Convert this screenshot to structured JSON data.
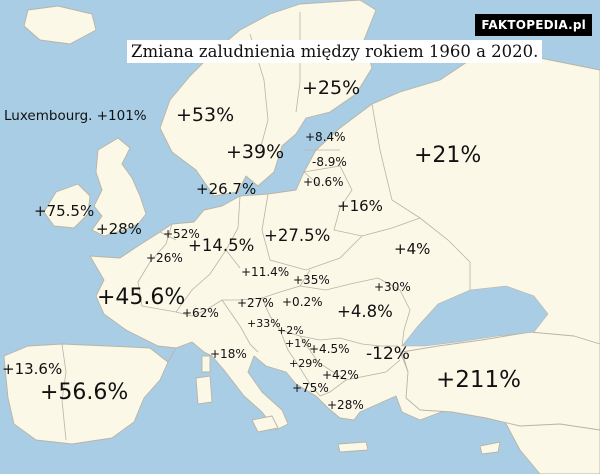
{
  "brand": "FAKTOPEDIA.pl",
  "title": "Zmiana zaludnienia między rokiem 1960 a 2020.",
  "note": "Luxembourg. +101%",
  "labels": {
    "finland": "+25%",
    "sweden": "+53%",
    "norway": "+39%",
    "estonia": "+8.4%",
    "latvia": "-8.9%",
    "lithuania": "+0.6%",
    "russia": "+21%",
    "denmark": "+26.7%",
    "belarus": "+16%",
    "ireland": "+75.5%",
    "uk": "+28%",
    "netherlands": "+52%",
    "belgium": "+26%",
    "germany": "+14.5%",
    "poland": "+27.5%",
    "ukraine": "+4%",
    "czechia": "+11.4%",
    "slovakia": "+35%",
    "moldova": "+30%",
    "france": "+45.6%",
    "switzerland": "+62%",
    "austria": "+27%",
    "hungary": "+0.2%",
    "romania": "+4.8%",
    "slovenia": "+33%",
    "croatia": "+2%",
    "bosnia": "+1%",
    "serbia": "+4.5%",
    "bulgaria": "-12%",
    "italy": "+18%",
    "montenegro": "+29%",
    "macedonia": "+42%",
    "albania": "+75%",
    "greece": "+28%",
    "portugal": "+13.6%",
    "spain": "+56.6%",
    "turkey": "+211%"
  }
}
